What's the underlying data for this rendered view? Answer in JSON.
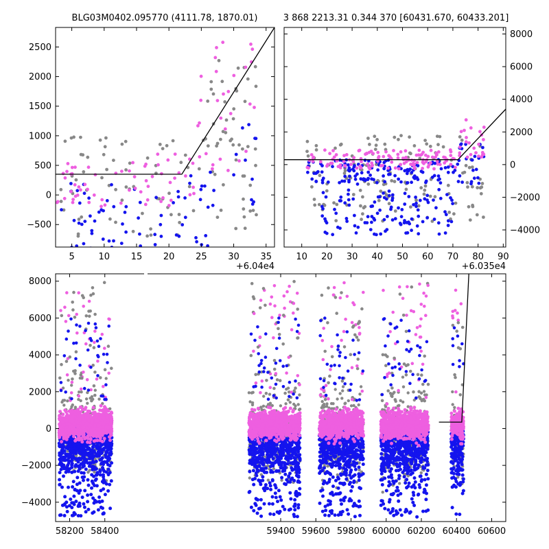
{
  "titles": {
    "left": "BLG03M0402.095770 (4111.78, 1870.01)",
    "right": "3 868 2213.31 0.344 370 [60431.670, 60433.201]"
  },
  "colors": {
    "pink": "#EE5FE0",
    "blue": "#1414EE",
    "gray": "#888888",
    "model": "#000000"
  },
  "chart_data": [
    {
      "id": "top-left",
      "type": "scatter",
      "xlim": [
        2.5,
        36.3
      ],
      "ylim": [
        -880,
        2830
      ],
      "xticks": [
        5,
        10,
        15,
        20,
        25,
        30,
        35
      ],
      "yticks": [
        -500,
        0,
        500,
        1000,
        1500,
        2000,
        2500
      ],
      "x_offset_label": "+6.04e4",
      "model_line": [
        [
          2.5,
          350
        ],
        [
          22.0,
          350
        ],
        [
          36.3,
          2830
        ]
      ],
      "series": [
        {
          "color": "pink",
          "segments": [
            [
              2.7,
              17.5,
              -200,
              550
            ],
            [
              18,
              24,
              -250,
              800
            ],
            [
              24,
              33.5,
              400,
              2600
            ]
          ]
        },
        {
          "color": "blue",
          "segments": [
            [
              2.7,
              16,
              -900,
              200
            ],
            [
              17.5,
              27,
              -900,
              400
            ],
            [
              30,
              33.5,
              -300,
              1300
            ]
          ]
        },
        {
          "color": "gray",
          "segments": [
            [
              2.7,
              33.5,
              -700,
              1000
            ],
            [
              25,
              33.5,
              500,
              2700
            ]
          ]
        }
      ]
    },
    {
      "id": "top-right",
      "type": "scatter",
      "xlim": [
        3,
        91
      ],
      "ylim": [
        -5050,
        8400
      ],
      "xticks": [
        10,
        20,
        30,
        40,
        50,
        60,
        70,
        80,
        90
      ],
      "yticks": [
        -4000,
        -2000,
        0,
        2000,
        4000,
        6000,
        8000
      ],
      "x_offset_label": "+6.035e4",
      "model_line": [
        [
          3,
          300
        ],
        [
          72,
          300
        ],
        [
          91,
          3400
        ]
      ],
      "series": [
        {
          "color": "pink",
          "segments": [
            [
              12,
              72,
              -300,
              900
            ],
            [
              72,
              83,
              200,
              2800
            ]
          ]
        },
        {
          "color": "blue",
          "segments": [
            [
              12,
              72,
              -1200,
              300
            ],
            [
              18,
              70,
              -4300,
              -1500
            ],
            [
              72,
              83,
              -1500,
              1300
            ]
          ]
        },
        {
          "color": "gray",
          "segments": [
            [
              12,
              83,
              -3500,
              1800
            ]
          ]
        }
      ]
    },
    {
      "id": "bottom",
      "type": "scatter",
      "xlim": [
        58120,
        60680
      ],
      "ylim": [
        -5050,
        8400
      ],
      "xticks": [
        58200,
        58400,
        59400,
        59600,
        59800,
        60000,
        60200,
        60400,
        60600
      ],
      "yticks": [
        -4000,
        -2000,
        0,
        2000,
        4000,
        6000,
        8000
      ],
      "model_line": [
        [
          60300,
          350
        ],
        [
          60430,
          350
        ],
        [
          60470,
          8400
        ]
      ],
      "seasons": [
        [
          58140,
          58440
        ],
        [
          59220,
          59510
        ],
        [
          59620,
          59870
        ],
        [
          59970,
          60240
        ],
        [
          60370,
          60440
        ]
      ]
    }
  ]
}
